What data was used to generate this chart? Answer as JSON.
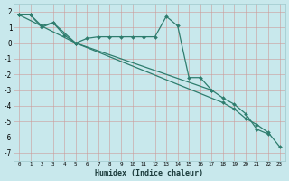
{
  "color": "#2e7d6e",
  "bg_color": "#c8e8ec",
  "grid_color": "#9dc8cc",
  "xlabel": "Humidex (Indice chaleur)",
  "xlim": [
    -0.5,
    23.5
  ],
  "ylim": [
    -7.5,
    2.5
  ],
  "yticks": [
    -7,
    -6,
    -5,
    -4,
    -3,
    -2,
    -1,
    0,
    1,
    2
  ],
  "xticks": [
    0,
    1,
    2,
    3,
    4,
    5,
    6,
    7,
    8,
    9,
    10,
    11,
    12,
    13,
    14,
    15,
    16,
    17,
    18,
    19,
    20,
    21,
    22,
    23
  ],
  "line_a_x": [
    0,
    1,
    2,
    3,
    5,
    6,
    7,
    8,
    9,
    10,
    11,
    12,
    13,
    14,
    15,
    16,
    17
  ],
  "line_a_y": [
    1.8,
    1.8,
    1.1,
    1.3,
    0.0,
    0.3,
    0.4,
    0.4,
    0.4,
    0.4,
    0.4,
    0.4,
    1.7,
    1.1,
    -2.2,
    -2.2,
    -3.0
  ],
  "line_b_x": [
    0,
    1,
    2,
    3,
    4,
    5,
    17,
    18,
    19,
    20,
    21,
    22
  ],
  "line_b_y": [
    1.8,
    1.8,
    1.0,
    1.3,
    0.5,
    0.0,
    -3.0,
    -3.5,
    -3.9,
    -4.5,
    -5.5,
    -5.8
  ],
  "line_c_x": [
    0,
    5,
    18,
    19,
    20,
    21,
    22,
    23
  ],
  "line_c_y": [
    1.8,
    0.0,
    -3.8,
    -4.2,
    -4.8,
    -5.2,
    -5.7,
    -6.6
  ]
}
